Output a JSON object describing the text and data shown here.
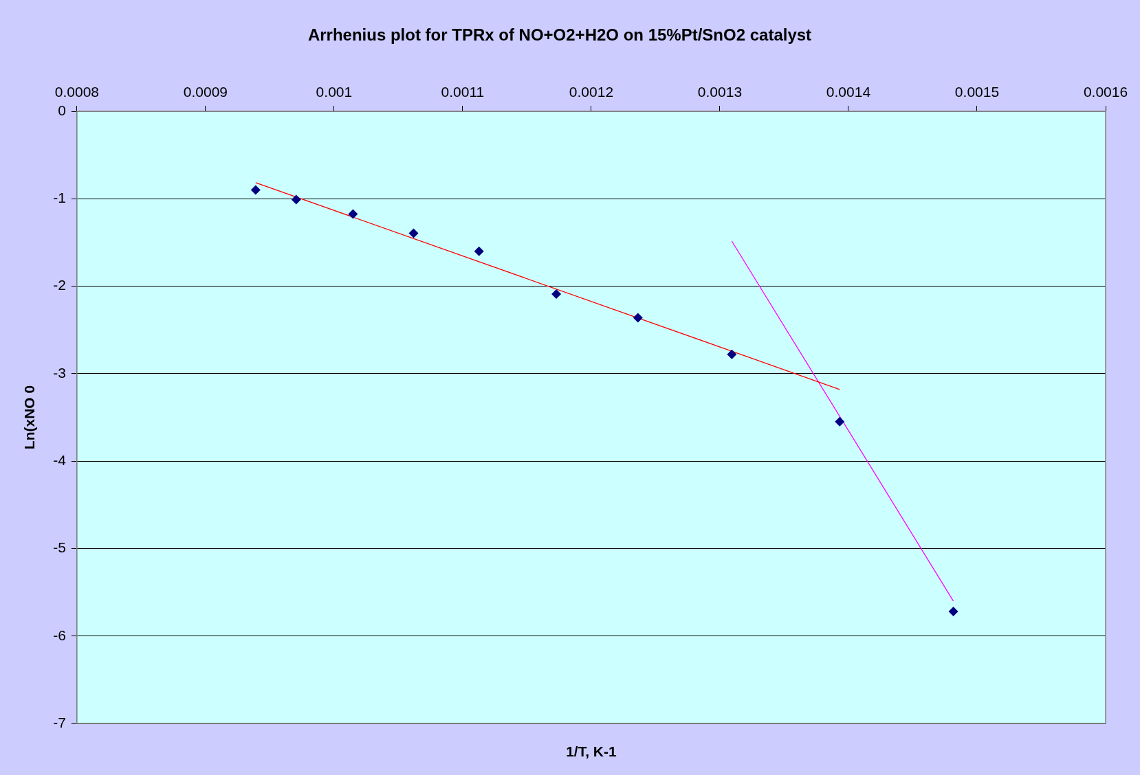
{
  "chart_data": {
    "type": "scatter",
    "title": "Arrhenius plot for TPRx of NO+O2+H2O on 15%Pt/SnO2 catalyst",
    "xlabel": "1/T, K-1",
    "ylabel": "Ln(xNO 0",
    "xlim": [
      0.0008,
      0.0016
    ],
    "xticks": [
      0.0008,
      0.0009,
      0.001,
      0.0011,
      0.0012,
      0.0013,
      0.0014,
      0.0015,
      0.0016
    ],
    "ylim": [
      -7,
      0
    ],
    "yticks": [
      -7,
      -6,
      -5,
      -4,
      -3,
      -2,
      -1,
      0
    ],
    "grid": "y",
    "legend": false,
    "series": [
      {
        "type": "scatter",
        "color": "#000080",
        "marker": "diamond",
        "x": [
          0.000939,
          0.0009705,
          0.0010147,
          0.0010618,
          0.0011127,
          0.0011728,
          0.0012363,
          0.0013093,
          0.0013932,
          0.0014816
        ],
        "values": [
          -0.9,
          -1.01,
          -1.175,
          -1.395,
          -1.6,
          -2.09,
          -2.36,
          -2.78,
          -3.55,
          -5.72
        ]
      },
      {
        "type": "line",
        "color": "#ff0000",
        "marker": "none",
        "x": [
          0.000939,
          0.0013932
        ],
        "values": [
          -0.816,
          -3.18
        ]
      },
      {
        "type": "line",
        "color": "#ff00ff",
        "marker": "none",
        "x": [
          0.0013093,
          0.0014816
        ],
        "values": [
          -1.485,
          -5.6
        ]
      }
    ]
  }
}
